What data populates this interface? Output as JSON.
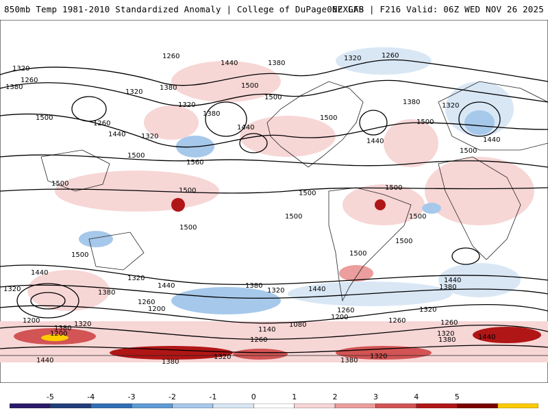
{
  "header": {
    "title_left": "850mb Temp 1981-2010 Standardized Anomaly | College of DuPage NEXLAB",
    "title_right": "06Z GFS | F216 Valid: 06Z WED NOV 26 2025"
  },
  "contour_labels": {
    "c1260_a": "1260",
    "c1440_a": "1440",
    "c1380_a": "1380",
    "c1320_a": "1320",
    "c1260_b": "1260",
    "c1320_b": "1320",
    "c1380_b": "1380",
    "c1260_c": "1260",
    "c1320_c": "1320",
    "c1380_c": "1380",
    "c1500_a": "1500",
    "c1500_b": "1500",
    "c1320_d": "1320",
    "c1380_d": "1380",
    "c1440_b": "1440",
    "c1500_c": "1500",
    "c1260_d": "1260",
    "c1500_d": "1500",
    "c1440_c": "1440",
    "c1320_e": "1320",
    "c1380_e": "1380",
    "c1320_f": "1320",
    "c1500_e": "1500",
    "c1440_d": "1440",
    "c1500_f": "1500",
    "c1500_g": "1500",
    "c1440_e": "1440",
    "c1560_a": "1560",
    "c1500_h": "1500",
    "c1500_i": "1500",
    "c1500_j": "1500",
    "c1500_k": "1500",
    "c1500_l": "1500",
    "c1500_m": "1500",
    "c1500_n": "1500",
    "c1500_o": "1500",
    "c1500_p": "1500",
    "c1440_f": "1440",
    "c1320_g": "1320",
    "c1440_g": "1440",
    "c1380_f": "1380",
    "c1320_h": "1320",
    "c1380_g": "1380",
    "c1440_h": "1440",
    "c1440_i": "1440",
    "c1380_h": "1380",
    "c1260_e": "1260",
    "c1200_a": "1200",
    "c1260_f": "1260",
    "c1200_b": "1200",
    "c1380_i": "1380",
    "c1320_i": "1320",
    "c1200_c": "1200",
    "c1080_a": "1080",
    "c1260_g": "1260",
    "c1200_d": "1200",
    "c1140_a": "1140",
    "c1260_h": "1260",
    "c1320_j": "1320",
    "c1380_j": "1380",
    "c1260_i": "1260",
    "c1440_j": "1440",
    "c1320_k": "1320",
    "c1380_k": "1380",
    "c1440_k": "1440",
    "c1380_l": "1380",
    "c1440_l": "1440",
    "c1320_l": "1320",
    "c1200_e": "1200",
    "c1440_m": "1440"
  },
  "colorbar": {
    "ticks": [
      "-5",
      "-4",
      "-3",
      "-2",
      "-1",
      "0",
      "1",
      "2",
      "3",
      "4",
      "5"
    ],
    "colors": [
      "#2b1a6b",
      "#213d7a",
      "#2f6fb5",
      "#5f9bd6",
      "#a6c8ea",
      "#d9e7f5",
      "#ffffff",
      "#f7d6d6",
      "#ec9d9d",
      "#d25454",
      "#b01616",
      "#7a0000",
      "#ffcc00"
    ]
  }
}
